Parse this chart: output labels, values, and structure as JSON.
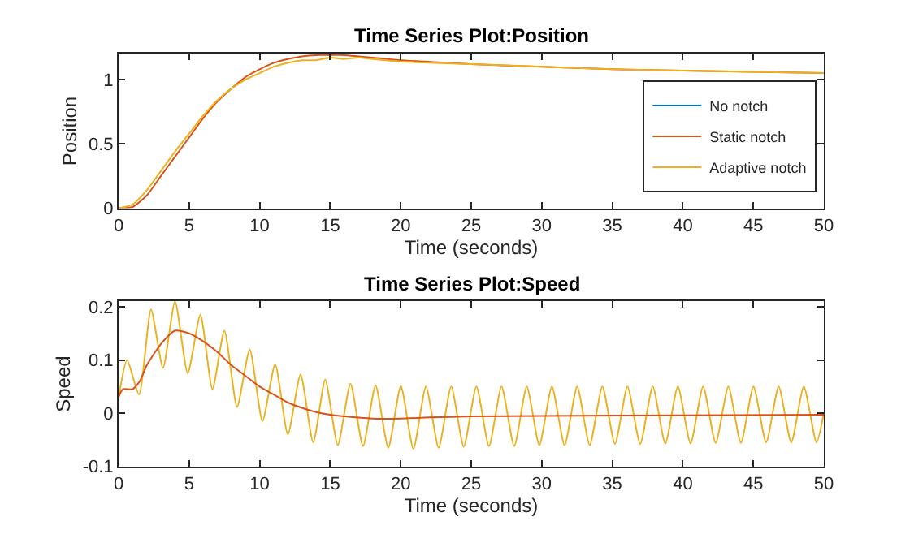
{
  "chart_data": [
    {
      "type": "line",
      "title": "Time Series Plot:Position",
      "xlabel": "Time (seconds)",
      "ylabel": "Position",
      "xlim": [
        0,
        50
      ],
      "xticks": [
        0,
        5,
        10,
        15,
        20,
        25,
        30,
        35,
        40,
        45,
        50
      ],
      "ylim": [
        0,
        1.2
      ],
      "yticks": [
        0,
        0.5,
        1
      ],
      "grid": false,
      "legend": "bottom right",
      "marker": "none",
      "line_style": "solid",
      "series": [
        {
          "name": "No notch",
          "color": "#0072bd",
          "values": [
            null
          ]
        },
        {
          "name": "Static notch",
          "color": "#d95319",
          "x": [
            0,
            1,
            2,
            3,
            4,
            5,
            6,
            7,
            8,
            9,
            10,
            11,
            12,
            13,
            14,
            15,
            16,
            17,
            18,
            19,
            20,
            25,
            30,
            35,
            40,
            45,
            50
          ],
          "values": [
            0,
            0.01,
            0.1,
            0.25,
            0.4,
            0.55,
            0.7,
            0.83,
            0.93,
            1.02,
            1.08,
            1.13,
            1.16,
            1.18,
            1.19,
            1.19,
            1.19,
            1.18,
            1.17,
            1.16,
            1.15,
            1.12,
            1.1,
            1.08,
            1.07,
            1.06,
            1.05
          ]
        },
        {
          "name": "Adaptive notch",
          "color": "#edb120",
          "x": [
            0,
            1,
            2,
            3,
            4,
            5,
            6,
            7,
            8,
            9,
            10,
            11,
            12,
            13,
            14,
            15,
            16,
            17,
            18,
            19,
            20,
            25,
            30,
            35,
            40,
            45,
            50
          ],
          "values": [
            0,
            0.03,
            0.14,
            0.29,
            0.44,
            0.58,
            0.72,
            0.84,
            0.93,
            1.0,
            1.05,
            1.1,
            1.13,
            1.15,
            1.15,
            1.17,
            1.16,
            1.17,
            1.16,
            1.15,
            1.14,
            1.12,
            1.1,
            1.08,
            1.07,
            1.06,
            1.05
          ]
        }
      ]
    },
    {
      "type": "line",
      "title": "Time Series Plot:Speed",
      "xlabel": "Time (seconds)",
      "ylabel": "Speed",
      "xlim": [
        0,
        50
      ],
      "xticks": [
        0,
        5,
        10,
        15,
        20,
        25,
        30,
        35,
        40,
        45,
        50
      ],
      "ylim": [
        -0.1,
        0.21
      ],
      "yticks": [
        -0.1,
        0,
        0.1,
        0.2
      ],
      "grid": false,
      "legend": false,
      "marker": "none",
      "line_style": "solid",
      "series": [
        {
          "color": "#edb120",
          "x": [
            0,
            0.6,
            1.45,
            2.3,
            3.15,
            4.0,
            4.9,
            5.8,
            6.65,
            7.5,
            8.4,
            9.3,
            10.2,
            11.1,
            12.0,
            12.9,
            13.8,
            14.65,
            15.54,
            16.44,
            17.33,
            18.22,
            19.12,
            20.01,
            20.9,
            21.79,
            22.69,
            23.58,
            24.47,
            25.37,
            26.26,
            27.15,
            28.05,
            28.94,
            29.83,
            30.72,
            31.62,
            32.51,
            33.4,
            34.3,
            35.19,
            36.08,
            36.98,
            37.87,
            38.76,
            39.65,
            40.55,
            41.44,
            42.33,
            43.23,
            44.12,
            45.01,
            45.91,
            46.8,
            47.69,
            48.58,
            49.48,
            50
          ],
          "values": [
            0.03,
            0.1,
            0.035,
            0.195,
            0.085,
            0.21,
            0.075,
            0.185,
            0.045,
            0.155,
            0.012,
            0.12,
            -0.015,
            0.092,
            -0.04,
            0.073,
            -0.055,
            0.063,
            -0.06,
            0.055,
            -0.062,
            0.052,
            -0.065,
            0.051,
            -0.067,
            0.05,
            -0.065,
            0.05,
            -0.063,
            0.05,
            -0.062,
            0.05,
            -0.062,
            0.05,
            -0.06,
            0.05,
            -0.06,
            0.05,
            -0.06,
            0.05,
            -0.058,
            0.05,
            -0.058,
            0.05,
            -0.057,
            0.05,
            -0.057,
            0.05,
            -0.056,
            0.05,
            -0.056,
            0.05,
            -0.055,
            0.05,
            -0.055,
            0.05,
            -0.055,
            0.0
          ]
        },
        {
          "color": "#d95319",
          "x": [
            0,
            0.3,
            1,
            1.5,
            2,
            3,
            4,
            5,
            6,
            7,
            8,
            9,
            10,
            11,
            12,
            13,
            14,
            15,
            16,
            18,
            20,
            22,
            25,
            30,
            40,
            50
          ],
          "values": [
            0.03,
            0.045,
            0.045,
            0.06,
            0.09,
            0.13,
            0.155,
            0.15,
            0.135,
            0.115,
            0.09,
            0.07,
            0.05,
            0.035,
            0.02,
            0.01,
            0.002,
            -0.003,
            -0.006,
            -0.01,
            -0.01,
            -0.008,
            -0.006,
            -0.005,
            -0.004,
            -0.003
          ]
        }
      ]
    }
  ]
}
